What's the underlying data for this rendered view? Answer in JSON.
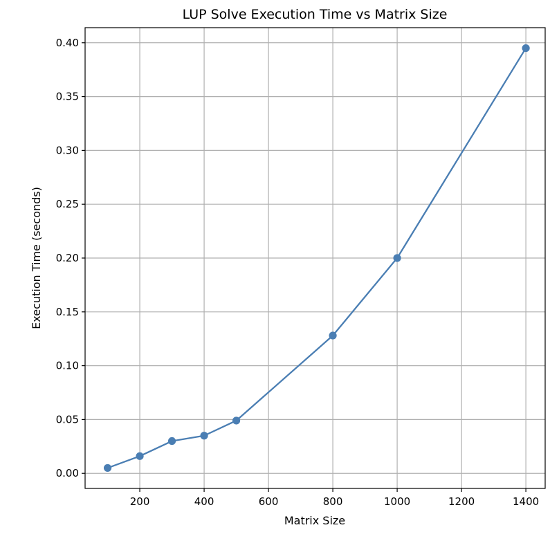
{
  "chart_data": {
    "type": "line",
    "title": "LUP Solve Execution Time vs Matrix Size",
    "xlabel": "Matrix Size",
    "ylabel": "Execution Time (seconds)",
    "xlim": [
      30,
      1460
    ],
    "ylim": [
      -0.014,
      0.414
    ],
    "xticks": [
      200,
      400,
      600,
      800,
      1000,
      1200,
      1400
    ],
    "yticks": [
      0.0,
      0.05,
      0.1,
      0.15,
      0.2,
      0.25,
      0.3,
      0.35,
      0.4
    ],
    "grid": true,
    "series": [
      {
        "color": "#4a7eb3",
        "marker": "circle",
        "x": [
          100,
          200,
          300,
          400,
          500,
          800,
          1000,
          1400
        ],
        "y": [
          0.005,
          0.016,
          0.03,
          0.035,
          0.049,
          0.128,
          0.2,
          0.395
        ]
      }
    ]
  }
}
